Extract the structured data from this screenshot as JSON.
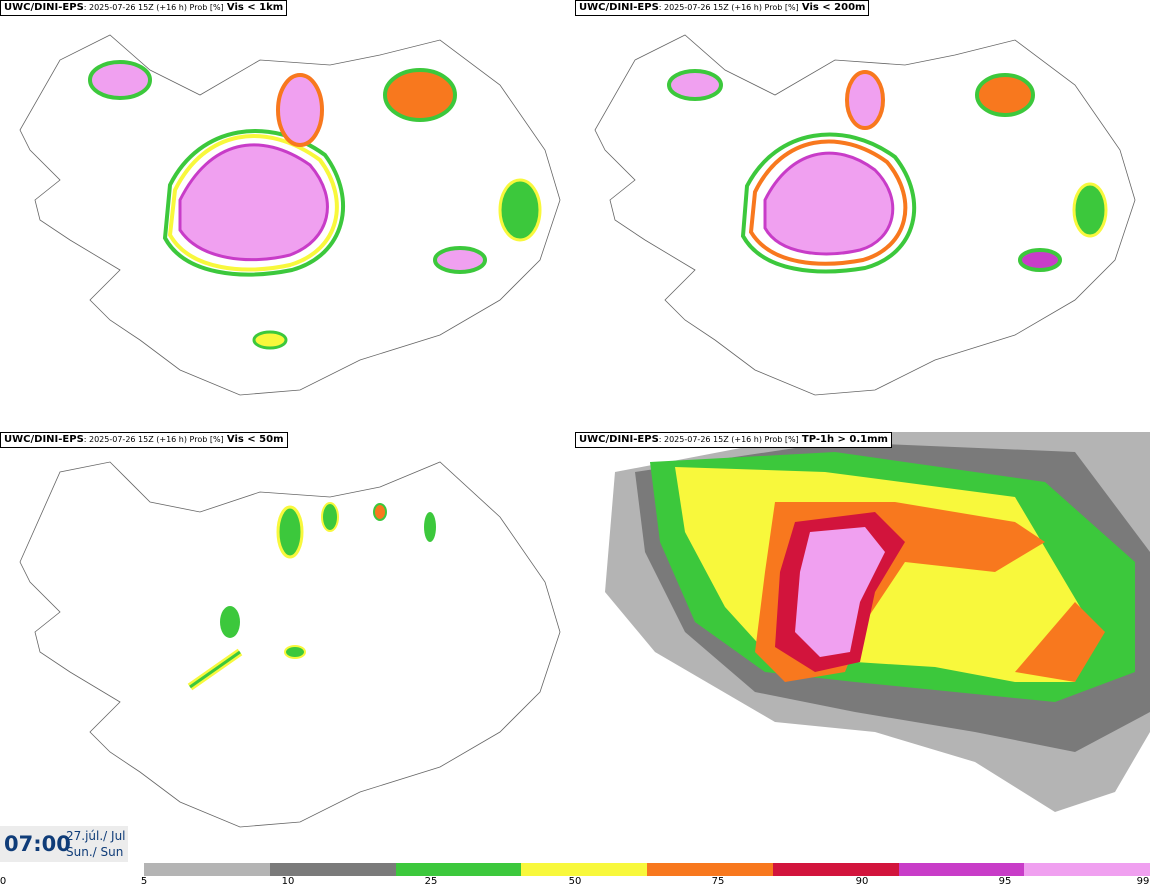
{
  "panels": [
    {
      "source": "UWC/DINI-EPS",
      "meta": ": 2025-07-26 15Z (+16 h) Prob [%]",
      "variable": "Vis < 1km"
    },
    {
      "source": "UWC/DINI-EPS",
      "meta": ": 2025-07-26 15Z (+16 h) Prob [%]",
      "variable": "Vis < 200m"
    },
    {
      "source": "UWC/DINI-EPS",
      "meta": ": 2025-07-26 15Z (+16 h) Prob [%]",
      "variable": "Vis < 50m"
    },
    {
      "source": "UWC/DINI-EPS",
      "meta": ": 2025-07-26 15Z (+16 h) Prob [%]",
      "variable": "TP-1h > 0.1mm"
    }
  ],
  "time_box": {
    "time": "07:00",
    "date": "27.júl./ Jul",
    "day": "Sun./ Sun"
  },
  "colorbar": {
    "ticks": [
      "0",
      "5",
      "10",
      "25",
      "50",
      "75",
      "90",
      "95",
      "99"
    ],
    "colors": [
      "#b4b4b4",
      "#7a7a7a",
      "#3cc83c",
      "#f8f83c",
      "#f8781e",
      "#d2143c",
      "#c83cc8",
      "#f0a0f0"
    ]
  }
}
